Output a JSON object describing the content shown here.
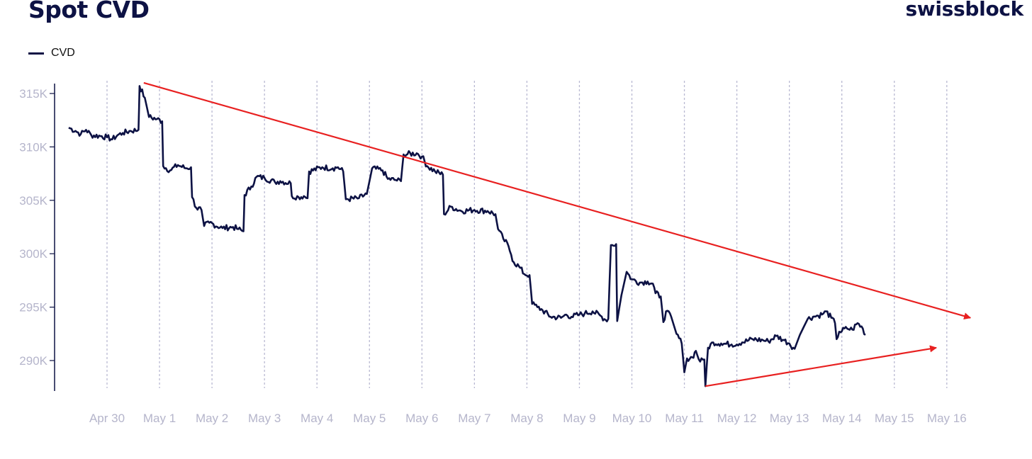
{
  "header": {
    "title": "Spot CVD",
    "brand": "swissblock"
  },
  "colors": {
    "line": "#0d1244",
    "trend": "#e82020",
    "grid": "#b9b9d2",
    "tick": "#b5b5cb"
  },
  "chart_data": {
    "type": "line",
    "title": "Spot CVD",
    "legend": {
      "position": "top-left",
      "entries": [
        "CVD"
      ]
    },
    "xlabel": "",
    "ylabel": "",
    "x_ticks": [
      "Apr 30",
      "May 1",
      "May 2",
      "May 3",
      "May 4",
      "May 5",
      "May 6",
      "May 7",
      "May 8",
      "May 9",
      "May 10",
      "May 11",
      "May 12",
      "May 13",
      "May 14",
      "May 15",
      "May 16"
    ],
    "y_ticks": [
      "315K",
      "310K",
      "305K",
      "300K",
      "295K",
      "290K"
    ],
    "y_tick_values": [
      315000,
      310000,
      305000,
      300000,
      295000,
      290000
    ],
    "ylim": [
      287300,
      317500
    ],
    "x_unit": "days since Apr 30 00:00",
    "xlim": [
      -0.75,
      16.5
    ],
    "grid": "vertical dashed at each day",
    "series": [
      {
        "name": "CVD",
        "points": [
          [
            -0.73,
            311.8
          ],
          [
            -0.6,
            311.5
          ],
          [
            -0.5,
            311.2
          ],
          [
            -0.4,
            311.6
          ],
          [
            -0.3,
            311.1
          ],
          [
            -0.1,
            311.0
          ],
          [
            0.0,
            310.9
          ],
          [
            0.1,
            310.7
          ],
          [
            0.2,
            311.1
          ],
          [
            0.3,
            311.3
          ],
          [
            0.45,
            311.5
          ],
          [
            0.6,
            311.6
          ],
          [
            0.62,
            315.7
          ],
          [
            0.72,
            314.6
          ],
          [
            0.8,
            312.8
          ],
          [
            0.95,
            312.6
          ],
          [
            1.05,
            312.4
          ],
          [
            1.07,
            308.2
          ],
          [
            1.2,
            307.8
          ],
          [
            1.35,
            308.3
          ],
          [
            1.5,
            308.0
          ],
          [
            1.6,
            308.1
          ],
          [
            1.62,
            305.3
          ],
          [
            1.7,
            304.3
          ],
          [
            1.8,
            304.1
          ],
          [
            1.85,
            302.6
          ],
          [
            1.95,
            302.9
          ],
          [
            2.2,
            302.4
          ],
          [
            2.4,
            302.5
          ],
          [
            2.5,
            302.3
          ],
          [
            2.6,
            302.1
          ],
          [
            2.62,
            305.5
          ],
          [
            2.75,
            306.3
          ],
          [
            2.85,
            307.2
          ],
          [
            3.0,
            307.1
          ],
          [
            3.2,
            306.7
          ],
          [
            3.3,
            306.8
          ],
          [
            3.5,
            306.6
          ],
          [
            3.52,
            305.4
          ],
          [
            3.65,
            305.3
          ],
          [
            3.75,
            305.4
          ],
          [
            3.82,
            305.2
          ],
          [
            3.85,
            307.7
          ],
          [
            4.1,
            308.1
          ],
          [
            4.3,
            308.0
          ],
          [
            4.4,
            308.1
          ],
          [
            4.5,
            307.7
          ],
          [
            4.55,
            305.1
          ],
          [
            4.8,
            305.2
          ],
          [
            4.95,
            305.6
          ],
          [
            5.05,
            308.0
          ],
          [
            5.25,
            307.8
          ],
          [
            5.35,
            307.0
          ],
          [
            5.5,
            306.9
          ],
          [
            5.6,
            306.8
          ],
          [
            5.65,
            309.3
          ],
          [
            5.9,
            309.4
          ],
          [
            6.0,
            309.1
          ],
          [
            6.1,
            308.2
          ],
          [
            6.25,
            307.7
          ],
          [
            6.4,
            307.4
          ],
          [
            6.42,
            303.7
          ],
          [
            6.55,
            304.4
          ],
          [
            6.75,
            304.0
          ],
          [
            7.0,
            304.1
          ],
          [
            7.25,
            304.0
          ],
          [
            7.4,
            303.7
          ],
          [
            7.45,
            302.3
          ],
          [
            7.55,
            301.4
          ],
          [
            7.65,
            300.7
          ],
          [
            7.7,
            299.9
          ],
          [
            7.75,
            299.2
          ],
          [
            7.85,
            298.8
          ],
          [
            7.95,
            298.1
          ],
          [
            8.05,
            298.0
          ],
          [
            8.1,
            295.3
          ],
          [
            8.2,
            295.0
          ],
          [
            8.3,
            294.7
          ],
          [
            8.45,
            294.1
          ],
          [
            8.65,
            294.0
          ],
          [
            8.75,
            294.3
          ],
          [
            8.85,
            294.1
          ],
          [
            9.0,
            294.3
          ],
          [
            9.1,
            294.4
          ],
          [
            9.25,
            294.6
          ],
          [
            9.4,
            294.2
          ],
          [
            9.5,
            293.8
          ],
          [
            9.55,
            293.9
          ],
          [
            9.6,
            300.8
          ],
          [
            9.7,
            300.9
          ],
          [
            9.72,
            293.7
          ],
          [
            9.8,
            296.1
          ],
          [
            9.9,
            298.3
          ],
          [
            10.0,
            297.6
          ],
          [
            10.15,
            297.3
          ],
          [
            10.3,
            297.4
          ],
          [
            10.4,
            297.2
          ],
          [
            10.45,
            296.3
          ],
          [
            10.55,
            296.0
          ],
          [
            10.6,
            293.6
          ],
          [
            10.65,
            294.6
          ],
          [
            10.75,
            294.1
          ],
          [
            10.85,
            292.5
          ],
          [
            10.95,
            291.6
          ],
          [
            11.0,
            288.9
          ],
          [
            11.05,
            290.2
          ],
          [
            11.15,
            290.3
          ],
          [
            11.22,
            290.9
          ],
          [
            11.3,
            289.9
          ],
          [
            11.38,
            290.1
          ],
          [
            11.4,
            287.6
          ],
          [
            11.45,
            291.2
          ],
          [
            11.55,
            291.7
          ],
          [
            11.7,
            291.6
          ],
          [
            11.9,
            291.5
          ],
          [
            12.1,
            291.7
          ],
          [
            12.3,
            292.0
          ],
          [
            12.5,
            291.9
          ],
          [
            12.6,
            291.8
          ],
          [
            12.75,
            292.3
          ],
          [
            12.9,
            291.9
          ],
          [
            13.0,
            291.6
          ],
          [
            13.1,
            291.1
          ],
          [
            13.2,
            292.4
          ],
          [
            13.35,
            293.9
          ],
          [
            13.45,
            294.1
          ],
          [
            13.55,
            294.2
          ],
          [
            13.65,
            294.4
          ],
          [
            13.7,
            294.6
          ],
          [
            13.8,
            294.0
          ],
          [
            13.87,
            293.5
          ],
          [
            13.9,
            292.0
          ],
          [
            13.95,
            292.7
          ],
          [
            14.1,
            293.0
          ],
          [
            14.2,
            292.9
          ],
          [
            14.3,
            293.5
          ],
          [
            14.4,
            293.0
          ],
          [
            14.45,
            292.4
          ]
        ]
      }
    ],
    "annotations": [
      {
        "type": "arrow",
        "color": "red",
        "from": [
          0.7,
          316.0
        ],
        "to": [
          16.45,
          294.0
        ]
      },
      {
        "type": "arrow",
        "color": "red",
        "from": [
          11.4,
          287.6
        ],
        "to": [
          15.8,
          291.2
        ]
      }
    ]
  }
}
